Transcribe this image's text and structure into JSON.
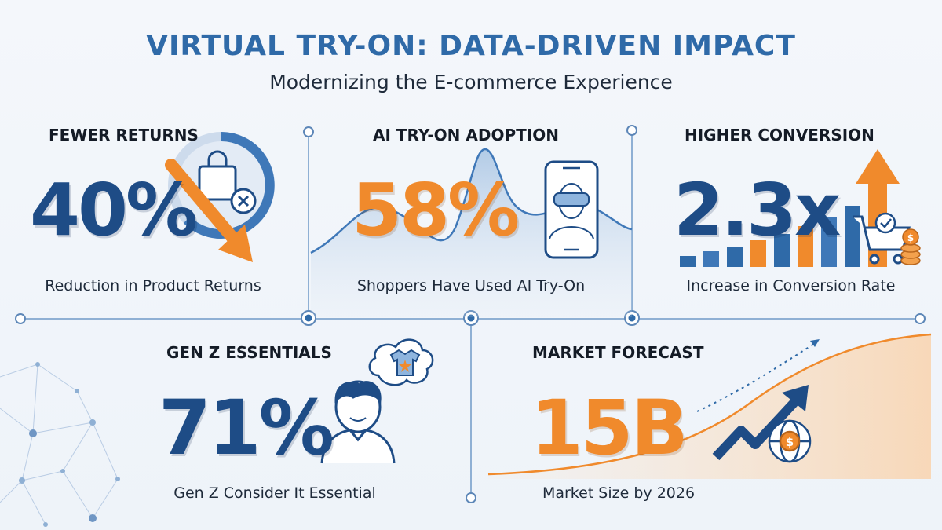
{
  "header": {
    "title": "VIRTUAL TRY-ON: DATA-DRIVEN IMPACT",
    "subtitle": "Modernizing the E-commerce Experience"
  },
  "stats": {
    "returns": {
      "heading": "FEWER RETURNS",
      "value": "40%",
      "caption": "Reduction in Product Returns"
    },
    "adoption": {
      "heading": "AI TRY-ON ADOPTION",
      "value": "58%",
      "caption": "Shoppers Have Used AI Try-On"
    },
    "conversion": {
      "heading": "HIGHER CONVERSION",
      "value": "2.3x",
      "caption": "Increase in Conversion Rate"
    },
    "genz": {
      "heading": "GEN Z ESSENTIALS",
      "value": "71%",
      "caption": "Gen Z Consider It Essential"
    },
    "market": {
      "heading": "MARKET FORECAST",
      "value": "15B",
      "caption": "Market Size by 2026"
    }
  },
  "icons": {
    "returns": [
      "shopping-bag-icon",
      "cancel-circle-icon",
      "down-trend-arrow-icon"
    ],
    "adoption": [
      "smartphone-icon",
      "vr-headset-face-icon"
    ],
    "conversion": [
      "shopping-cart-icon",
      "check-badge-icon",
      "coin-stack-icon",
      "up-arrow-icon"
    ],
    "genz": [
      "person-icon",
      "thought-bubble-icon",
      "tshirt-icon"
    ],
    "market": [
      "growth-arrow-icon",
      "dollar-globe-icon"
    ]
  },
  "colors": {
    "title": "#2f6aa8",
    "blue": "#1e4c86",
    "orange": "#f08a2c",
    "line": "#8fb0d4",
    "text": "#141b26"
  }
}
